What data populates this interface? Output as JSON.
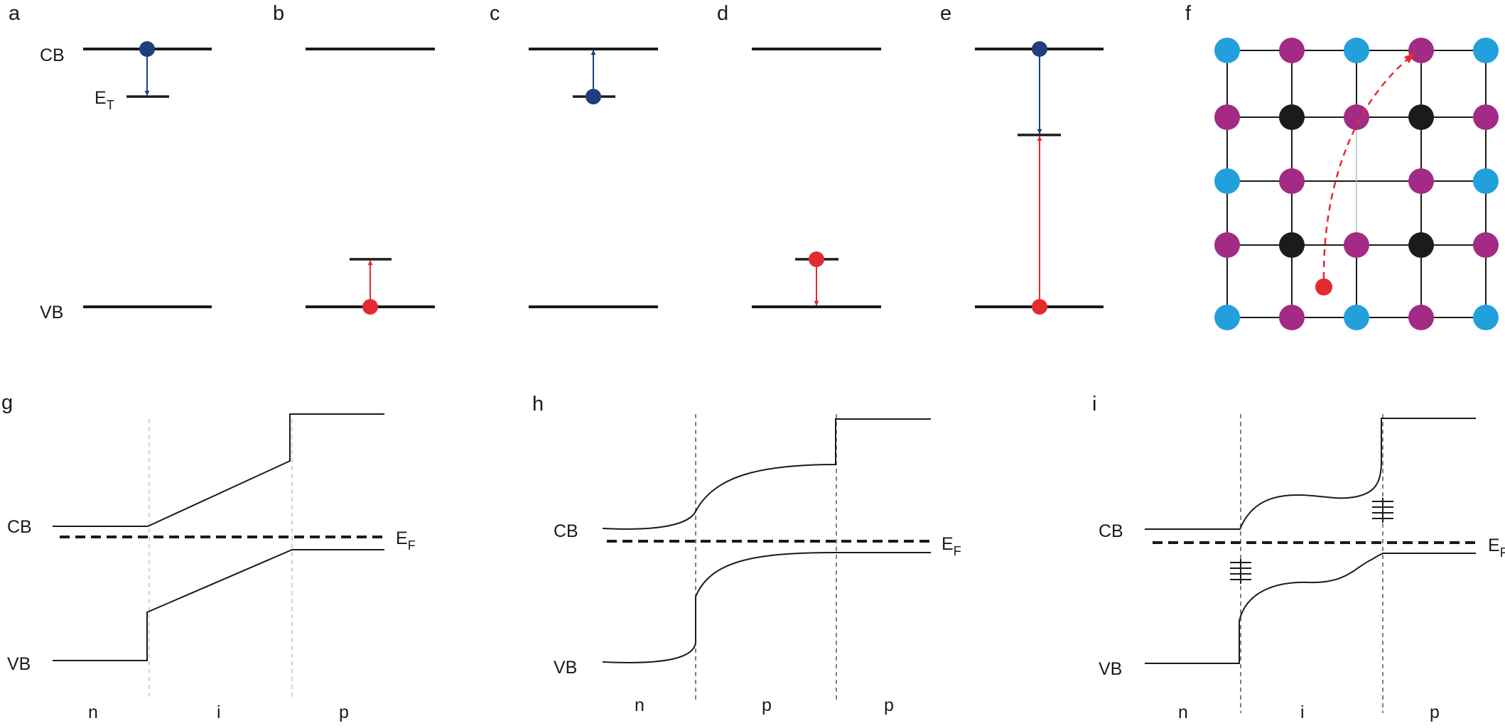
{
  "colors": {
    "line": "#1a1a1a",
    "electron": "#1b3f7f",
    "hole": "#e32a31",
    "atom_cyan": "#22a0db",
    "atom_magenta": "#a32a85",
    "atom_black": "#1b1b1b"
  },
  "panels": {
    "a": {
      "letter": "a",
      "cb": "CB",
      "vb": "VB",
      "et": "E",
      "et_sub": "T"
    },
    "b": {
      "letter": "b"
    },
    "c": {
      "letter": "c"
    },
    "d": {
      "letter": "d"
    },
    "e": {
      "letter": "e"
    },
    "f": {
      "letter": "f",
      "lattice": [
        [
          "cyan",
          "magenta",
          "cyan",
          "magenta",
          "cyan"
        ],
        [
          "magenta",
          "black",
          "magenta",
          "black",
          "magenta"
        ],
        [
          "cyan",
          "magenta",
          "vacancy",
          "magenta",
          "cyan"
        ],
        [
          "magenta",
          "black",
          "magenta",
          "black",
          "magenta"
        ],
        [
          "cyan",
          "magenta",
          "cyan",
          "magenta",
          "cyan"
        ]
      ]
    },
    "g": {
      "letter": "g",
      "cb": "CB",
      "vb": "VB",
      "ef": "E",
      "ef_sub": "F",
      "regions": [
        "n",
        "i",
        "p"
      ]
    },
    "h": {
      "letter": "h",
      "cb": "CB",
      "vb": "VB",
      "ef": "E",
      "ef_sub": "F",
      "regions": [
        "n",
        "p",
        "p"
      ]
    },
    "i": {
      "letter": "i",
      "cb": "CB",
      "vb": "VB",
      "ef": "E",
      "ef_sub": "F",
      "regions": [
        "n",
        "i",
        "p"
      ]
    }
  }
}
